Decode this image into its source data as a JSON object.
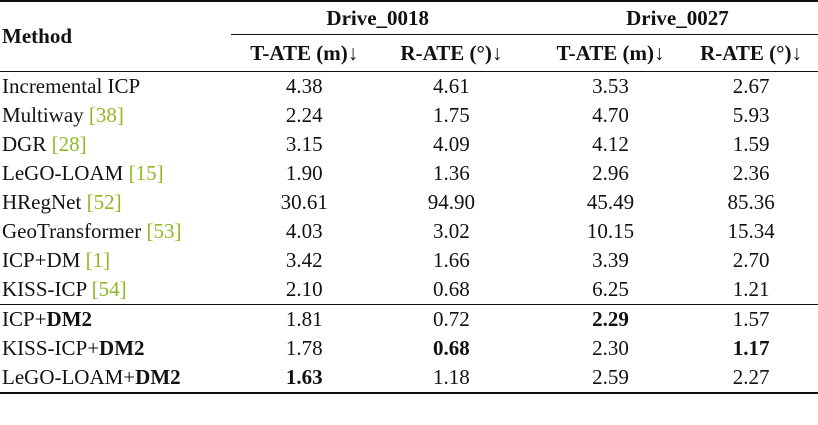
{
  "header": {
    "method": "Method",
    "groups": [
      "Drive_0018",
      "Drive_0027"
    ],
    "metrics": [
      "T-ATE (m)↓",
      "R-ATE (°)↓",
      "T-ATE (m)↓",
      "R-ATE (°)↓"
    ]
  },
  "rows": [
    {
      "name": "Incremental ICP",
      "cite": "",
      "suffix": "",
      "v": [
        "4.38",
        "4.61",
        "3.53",
        "2.67"
      ]
    },
    {
      "name": "Multiway ",
      "cite": "38",
      "suffix": "",
      "v": [
        "2.24",
        "1.75",
        "4.70",
        "5.93"
      ]
    },
    {
      "name": "DGR ",
      "cite": "28",
      "suffix": "",
      "v": [
        "3.15",
        "4.09",
        "4.12",
        "1.59"
      ]
    },
    {
      "name": "LeGO-LOAM ",
      "cite": "15",
      "suffix": "",
      "v": [
        "1.90",
        "1.36",
        "2.96",
        "2.36"
      ]
    },
    {
      "name": "HRegNet ",
      "cite": "52",
      "suffix": "",
      "v": [
        "30.61",
        "94.90",
        "45.49",
        "85.36"
      ]
    },
    {
      "name": "GeoTransformer ",
      "cite": "53",
      "suffix": "",
      "v": [
        "4.03",
        "3.02",
        "10.15",
        "15.34"
      ]
    },
    {
      "name": "ICP+DM ",
      "cite": "1",
      "suffix": "",
      "v": [
        "3.42",
        "1.66",
        "3.39",
        "2.70"
      ]
    },
    {
      "name": "KISS-ICP ",
      "cite": "54",
      "suffix": "",
      "v": [
        "2.10",
        "0.68",
        "6.25",
        "1.21"
      ]
    }
  ],
  "ours": [
    {
      "prefix": "ICP+",
      "bold": "DM2",
      "v": [
        "1.81",
        "0.72",
        "2.29",
        "1.57"
      ],
      "best": [
        false,
        false,
        true,
        false
      ]
    },
    {
      "prefix": "KISS-ICP+",
      "bold": "DM2",
      "v": [
        "1.78",
        "0.68",
        "2.30",
        "1.17"
      ],
      "best": [
        false,
        true,
        false,
        true
      ]
    },
    {
      "prefix": "LeGO-LOAM+",
      "bold": "DM2",
      "v": [
        "1.63",
        "1.18",
        "2.59",
        "2.27"
      ],
      "best": [
        true,
        false,
        false,
        false
      ]
    }
  ]
}
